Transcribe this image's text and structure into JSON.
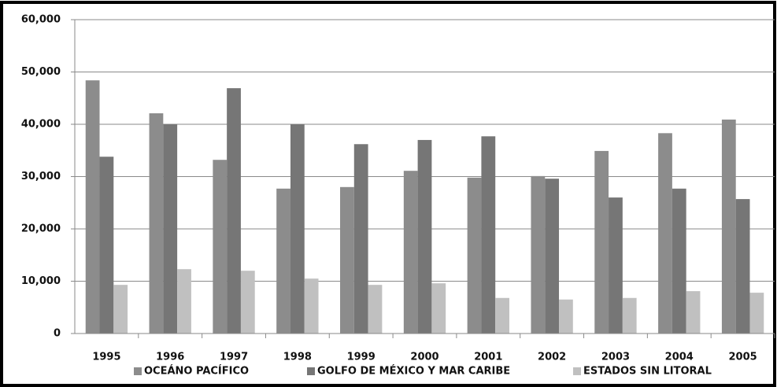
{
  "chart_data": {
    "type": "bar",
    "categories": [
      "1995",
      "1996",
      "1997",
      "1998",
      "1999",
      "2000",
      "2001",
      "2002",
      "2003",
      "2004",
      "2005"
    ],
    "series": [
      {
        "name": "OCEÁNO PACÍFICO",
        "color": "#8c8c8c",
        "values": [
          48400,
          42100,
          33200,
          27700,
          28000,
          31100,
          29800,
          30100,
          34900,
          38300,
          40900
        ]
      },
      {
        "name": "GOLFO DE MÉXICO Y MAR CARIBE",
        "color": "#767676",
        "values": [
          33800,
          40000,
          46900,
          40000,
          36200,
          37000,
          37700,
          29600,
          26000,
          27700,
          25700
        ]
      },
      {
        "name": "ESTADOS SIN LITORAL",
        "color": "#c0c0c0",
        "values": [
          9300,
          12300,
          12000,
          10500,
          9300,
          9600,
          6800,
          6500,
          6800,
          8100,
          7800
        ]
      }
    ],
    "ylim": [
      0,
      60000
    ],
    "yticks": [
      0,
      {
        "value": 10000,
        "label": "10,000"
      },
      {
        "value": 20000,
        "label": "20,000"
      },
      {
        "value": 30000,
        "label": "30,000"
      },
      {
        "value": 40000,
        "label": "40,000"
      },
      {
        "value": 50000,
        "label": "50,000"
      },
      {
        "value": 60000,
        "label": "60,000"
      }
    ],
    "grid": true,
    "legend": "bottom"
  }
}
